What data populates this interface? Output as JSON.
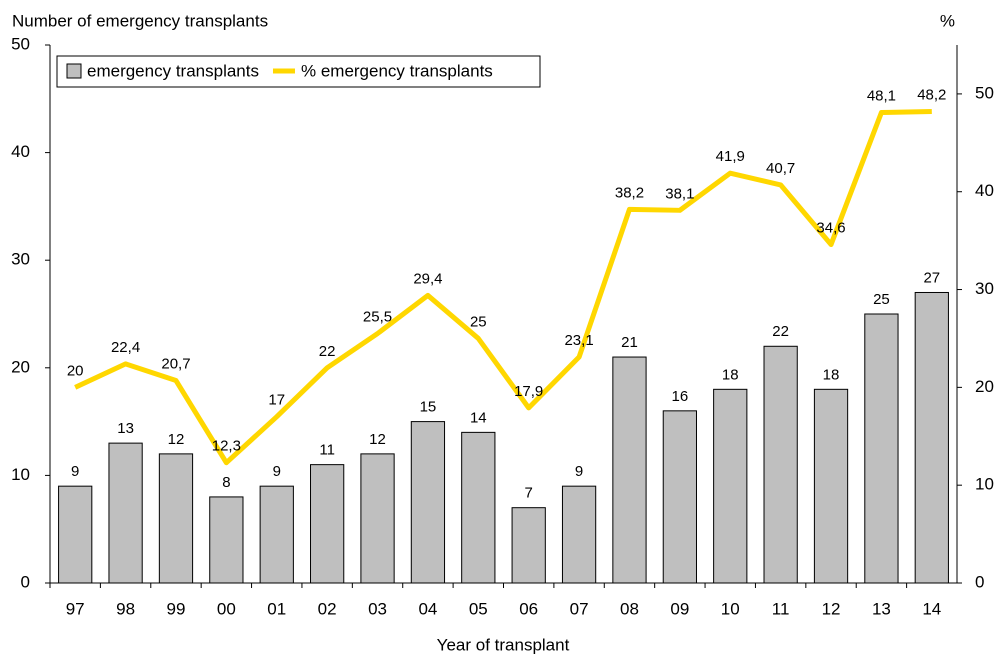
{
  "chart_data": {
    "type": "bar-line",
    "y_label": "Number of emergency transplants",
    "y2_label": "%",
    "x_label": "Year of transplant",
    "categories": [
      "97",
      "98",
      "99",
      "00",
      "01",
      "02",
      "03",
      "04",
      "05",
      "06",
      "07",
      "08",
      "09",
      "10",
      "11",
      "12",
      "13",
      "14"
    ],
    "series": [
      {
        "name": "emergency transplants",
        "type": "bar",
        "color": "#bfbfbf",
        "values": [
          9,
          13,
          12,
          8,
          9,
          11,
          12,
          15,
          14,
          7,
          9,
          21,
          16,
          18,
          22,
          18,
          25,
          27
        ]
      },
      {
        "name": "% emergency transplants",
        "type": "line",
        "color": "#ffd700",
        "axis": "y2",
        "values": [
          20,
          22.4,
          20.7,
          12.3,
          17,
          22,
          25.5,
          29.4,
          25,
          17.9,
          23.1,
          38.2,
          38.1,
          41.9,
          40.7,
          34.6,
          48.1,
          48.2
        ],
        "value_labels": [
          "20",
          "22,4",
          "20,7",
          "12,3",
          "17",
          "22",
          "25,5",
          "29,4",
          "25",
          "17,9",
          "23,1",
          "38,2",
          "38,1",
          "41,9",
          "40,7",
          "34,6",
          "48,1",
          "48,2"
        ]
      }
    ],
    "ylim": [
      0,
      50
    ],
    "yticks": [
      0,
      10,
      20,
      30,
      40,
      50
    ],
    "y2lim": [
      0,
      55
    ],
    "y2ticks": [
      0,
      10,
      20,
      30,
      40,
      50
    ],
    "grid": false
  }
}
